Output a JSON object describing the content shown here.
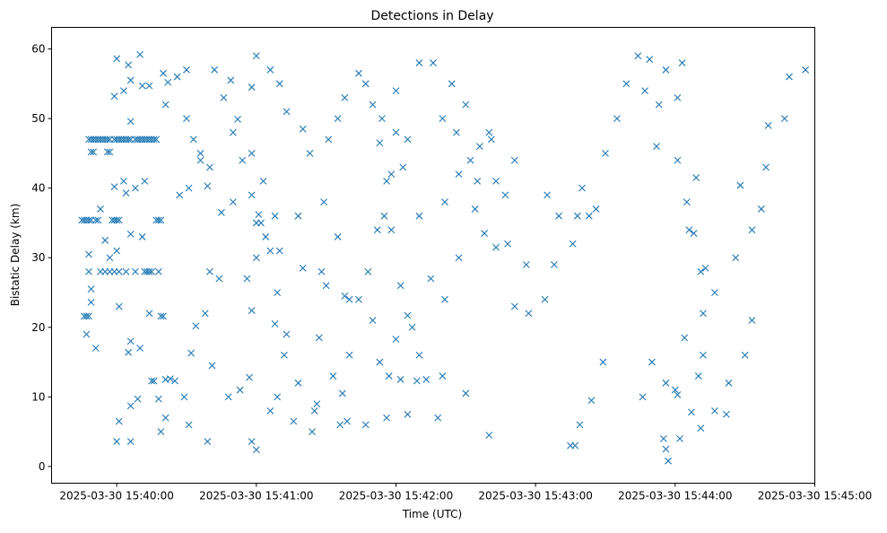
{
  "chart_data": {
    "type": "scatter",
    "title": "Detections in Delay",
    "xlabel": "Time (UTC)",
    "ylabel": "Bistatic Delay (km)",
    "x_unit": "seconds since 2025-03-30 15:40:00",
    "xlim": [
      -28,
      300
    ],
    "ylim": [
      -2.4,
      63.1
    ],
    "grid": false,
    "marker": "x",
    "color": "#1f77b4",
    "x_ticks": [
      {
        "value": 0,
        "label": "2025-03-30 15:40:00"
      },
      {
        "value": 60,
        "label": "2025-03-30 15:41:00"
      },
      {
        "value": 120,
        "label": "2025-03-30 15:42:00"
      },
      {
        "value": 180,
        "label": "2025-03-30 15:43:00"
      },
      {
        "value": 240,
        "label": "2025-03-30 15:44:00"
      },
      {
        "value": 300,
        "label": "2025-03-30 15:45:00"
      }
    ],
    "y_ticks": [
      {
        "value": 0,
        "label": "0"
      },
      {
        "value": 10,
        "label": "10"
      },
      {
        "value": 20,
        "label": "20"
      },
      {
        "value": 30,
        "label": "30"
      },
      {
        "value": 40,
        "label": "40"
      },
      {
        "value": 50,
        "label": "50"
      },
      {
        "value": 60,
        "label": "60"
      }
    ],
    "points": [
      [
        -12,
        47
      ],
      [
        -11,
        47
      ],
      [
        -10,
        47
      ],
      [
        -9,
        47
      ],
      [
        -8,
        47
      ],
      [
        -7,
        47
      ],
      [
        -6,
        47
      ],
      [
        -5,
        47
      ],
      [
        -4,
        47
      ],
      [
        -3,
        47
      ],
      [
        -1,
        47
      ],
      [
        0,
        47
      ],
      [
        1,
        47
      ],
      [
        2,
        47
      ],
      [
        3,
        47
      ],
      [
        4,
        47
      ],
      [
        5,
        47
      ],
      [
        6,
        47
      ],
      [
        8,
        47
      ],
      [
        9,
        47
      ],
      [
        10,
        47
      ],
      [
        11,
        47
      ],
      [
        12,
        47
      ],
      [
        13,
        47
      ],
      [
        14,
        47
      ],
      [
        15,
        47
      ],
      [
        16,
        47
      ],
      [
        17,
        47
      ],
      [
        -11,
        45.2
      ],
      [
        -10,
        45.2
      ],
      [
        -4,
        45.2
      ],
      [
        -3,
        45.2
      ],
      [
        -15,
        35.4
      ],
      [
        -14,
        35.4
      ],
      [
        -13,
        35.4
      ],
      [
        -12,
        35.4
      ],
      [
        -11,
        35.4
      ],
      [
        -9,
        35.4
      ],
      [
        -8,
        35.4
      ],
      [
        -2,
        35.4
      ],
      [
        -1,
        35.4
      ],
      [
        0,
        35.4
      ],
      [
        1,
        35.4
      ],
      [
        17,
        35.4
      ],
      [
        18,
        35.4
      ],
      [
        19,
        35.4
      ],
      [
        -14,
        21.6
      ],
      [
        -13,
        21.6
      ],
      [
        -12,
        21.6
      ],
      [
        19,
        21.6
      ],
      [
        20,
        21.6
      ],
      [
        -12,
        28
      ],
      [
        -7,
        28
      ],
      [
        -5,
        28
      ],
      [
        -3,
        28
      ],
      [
        -1,
        28
      ],
      [
        1,
        28
      ],
      [
        4,
        28
      ],
      [
        8,
        28
      ],
      [
        12,
        28
      ],
      [
        13,
        28
      ],
      [
        14,
        28
      ],
      [
        15,
        28
      ],
      [
        18,
        28
      ],
      [
        0,
        58.6
      ],
      [
        5,
        57.7
      ],
      [
        10,
        59.2
      ],
      [
        14,
        54.7
      ],
      [
        3,
        54
      ],
      [
        6,
        55.5
      ],
      [
        11,
        54.7
      ],
      [
        -1,
        53.2
      ],
      [
        6,
        49.6
      ],
      [
        3,
        41
      ],
      [
        -7,
        37
      ],
      [
        -1,
        40.2
      ],
      [
        4,
        39.3
      ],
      [
        8,
        40
      ],
      [
        12,
        41
      ],
      [
        -5,
        32.5
      ],
      [
        -3,
        30
      ],
      [
        0,
        31
      ],
      [
        6,
        33.4
      ],
      [
        11,
        33
      ],
      [
        -12,
        30.5
      ],
      [
        -11,
        25.5
      ],
      [
        -11,
        23.6
      ],
      [
        -9,
        17
      ],
      [
        1,
        23
      ],
      [
        6,
        18
      ],
      [
        5,
        16.4
      ],
      [
        10,
        17
      ],
      [
        14,
        22
      ],
      [
        16,
        12.3
      ],
      [
        15,
        12.3
      ],
      [
        21,
        12.5
      ],
      [
        18,
        9.7
      ],
      [
        9,
        9.7
      ],
      [
        6,
        8.7
      ],
      [
        1,
        6.5
      ],
      [
        0,
        3.6
      ],
      [
        6,
        3.6
      ],
      [
        -13,
        19
      ],
      [
        22,
        55.2
      ],
      [
        21,
        52
      ],
      [
        26,
        56
      ],
      [
        30,
        57
      ],
      [
        33,
        47
      ],
      [
        36,
        45
      ],
      [
        27,
        39
      ],
      [
        31,
        40
      ],
      [
        36,
        44
      ],
      [
        39,
        40.3
      ],
      [
        45,
        36.5
      ],
      [
        40,
        28
      ],
      [
        44,
        27
      ],
      [
        38,
        22
      ],
      [
        34,
        20.2
      ],
      [
        32,
        16.3
      ],
      [
        41,
        14.5
      ],
      [
        48,
        10
      ],
      [
        53,
        11
      ],
      [
        58,
        3.6
      ],
      [
        60,
        2.4
      ],
      [
        57,
        12.8
      ],
      [
        66,
        8
      ],
      [
        69,
        10
      ],
      [
        72,
        16
      ],
      [
        68,
        20.5
      ],
      [
        58,
        22.4
      ],
      [
        56,
        27
      ],
      [
        60,
        30
      ],
      [
        64,
        33
      ],
      [
        68,
        36
      ],
      [
        61,
        36.2
      ],
      [
        63,
        41
      ],
      [
        58,
        45
      ],
      [
        52,
        49.9
      ],
      [
        49,
        55.5
      ],
      [
        58,
        54.5
      ],
      [
        60,
        59
      ],
      [
        66,
        57
      ],
      [
        70,
        55
      ],
      [
        73,
        51
      ],
      [
        80,
        48.5
      ],
      [
        83,
        45
      ],
      [
        89,
        38
      ],
      [
        95,
        33
      ],
      [
        98,
        24.5
      ],
      [
        87,
        18.5
      ],
      [
        93,
        13
      ],
      [
        99,
        6.5
      ],
      [
        97,
        10.5
      ],
      [
        86,
        9
      ],
      [
        84,
        5
      ],
      [
        76,
        6.5
      ],
      [
        88,
        28
      ],
      [
        78,
        36
      ],
      [
        91,
        47
      ],
      [
        95,
        50
      ],
      [
        98,
        53
      ],
      [
        104,
        56.5
      ],
      [
        107,
        55
      ],
      [
        110,
        52
      ],
      [
        114,
        50
      ],
      [
        120,
        54
      ],
      [
        113,
        46.5
      ],
      [
        118,
        42
      ],
      [
        123,
        43
      ],
      [
        118,
        34
      ],
      [
        115,
        36
      ],
      [
        122,
        26
      ],
      [
        125,
        21.7
      ],
      [
        127,
        20
      ],
      [
        117,
        13
      ],
      [
        122,
        12.5
      ],
      [
        129,
        12.3
      ],
      [
        133,
        12.5
      ],
      [
        138,
        7
      ],
      [
        125,
        7.5
      ],
      [
        116,
        7
      ],
      [
        107,
        6
      ],
      [
        113,
        15
      ],
      [
        130,
        58
      ],
      [
        136,
        58
      ],
      [
        144,
        55
      ],
      [
        140,
        50
      ],
      [
        146,
        48
      ],
      [
        150,
        52
      ],
      [
        147,
        42
      ],
      [
        141,
        38
      ],
      [
        152,
        44
      ],
      [
        156,
        46
      ],
      [
        160,
        48
      ],
      [
        163,
        41
      ],
      [
        167,
        39
      ],
      [
        158,
        33.5
      ],
      [
        163,
        31.5
      ],
      [
        168,
        32
      ],
      [
        176,
        29
      ],
      [
        171,
        23
      ],
      [
        177,
        22
      ],
      [
        184,
        24
      ],
      [
        190,
        36
      ],
      [
        188,
        29
      ],
      [
        196,
        32
      ],
      [
        203,
        36
      ],
      [
        200,
        40
      ],
      [
        206,
        37
      ],
      [
        210,
        45
      ],
      [
        215,
        50
      ],
      [
        219,
        55
      ],
      [
        224,
        59
      ],
      [
        229,
        58.5
      ],
      [
        227,
        54
      ],
      [
        233,
        52
      ],
      [
        236,
        57
      ],
      [
        243,
        58
      ],
      [
        241,
        53
      ],
      [
        232,
        46
      ],
      [
        241,
        44
      ],
      [
        245,
        38
      ],
      [
        249,
        41.5
      ],
      [
        246,
        34
      ],
      [
        251,
        28
      ],
      [
        257,
        25
      ],
      [
        252,
        22
      ],
      [
        244,
        18.5
      ],
      [
        236,
        12
      ],
      [
        241,
        10.3
      ],
      [
        250,
        13
      ],
      [
        257,
        8
      ],
      [
        262,
        7.5
      ],
      [
        263,
        12
      ],
      [
        270,
        16
      ],
      [
        273,
        21
      ],
      [
        266,
        30
      ],
      [
        273,
        34
      ],
      [
        277,
        37
      ],
      [
        268,
        40.4
      ],
      [
        279,
        43
      ],
      [
        280,
        49
      ],
      [
        287,
        50
      ],
      [
        289,
        56
      ],
      [
        296,
        57
      ],
      [
        197,
        3
      ],
      [
        160,
        4.5
      ],
      [
        150,
        10.5
      ],
      [
        140,
        13
      ],
      [
        130,
        16
      ],
      [
        120,
        18.3
      ],
      [
        110,
        21
      ],
      [
        100,
        24
      ],
      [
        90,
        26
      ],
      [
        80,
        28.5
      ],
      [
        70,
        31
      ],
      [
        60,
        35
      ],
      [
        50,
        38
      ],
      [
        40,
        43
      ],
      [
        30,
        50
      ],
      [
        20,
        56.5
      ],
      [
        235,
        4
      ],
      [
        236,
        2.5
      ],
      [
        240,
        11
      ],
      [
        242,
        4
      ],
      [
        251,
        5.5
      ],
      [
        247,
        7.8
      ],
      [
        252,
        16
      ],
      [
        253,
        28.5
      ],
      [
        237,
        0.8
      ],
      [
        248,
        33.5
      ],
      [
        230,
        15
      ],
      [
        226,
        10
      ],
      [
        204,
        9.5
      ],
      [
        199,
        6
      ],
      [
        195,
        3
      ],
      [
        209,
        15
      ],
      [
        198,
        36
      ],
      [
        185,
        39
      ],
      [
        171,
        44
      ],
      [
        161,
        47
      ],
      [
        155,
        41
      ],
      [
        154,
        37
      ],
      [
        147,
        30
      ],
      [
        141,
        24
      ],
      [
        135,
        27
      ],
      [
        130,
        36
      ],
      [
        125,
        47
      ],
      [
        120,
        48
      ],
      [
        116,
        41
      ],
      [
        112,
        34
      ],
      [
        108,
        28
      ],
      [
        104,
        24
      ],
      [
        100,
        16
      ],
      [
        96,
        6
      ],
      [
        85,
        8
      ],
      [
        78,
        12
      ],
      [
        73,
        19
      ],
      [
        69,
        25
      ],
      [
        66,
        31
      ],
      [
        62,
        35
      ],
      [
        58,
        39
      ],
      [
        54,
        44
      ],
      [
        50,
        48
      ],
      [
        46,
        53
      ],
      [
        42,
        57
      ],
      [
        39,
        3.6
      ],
      [
        31,
        6
      ],
      [
        29,
        10
      ],
      [
        25,
        12.3
      ],
      [
        23,
        12.6
      ],
      [
        21,
        7
      ],
      [
        19,
        5
      ]
    ]
  }
}
